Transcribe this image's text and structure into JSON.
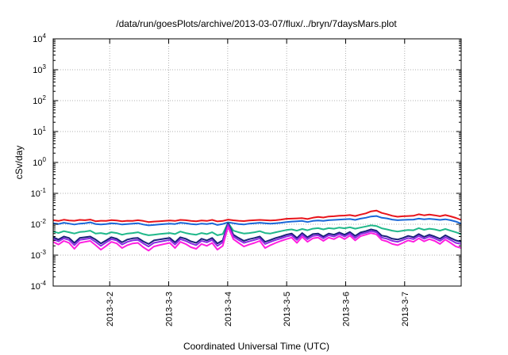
{
  "chart_data": {
    "type": "line",
    "title": "/data/run/goesPlots/archive/2013-03-07/flux/../bryn/7daysMars.plot",
    "xlabel": "Coordinated Universal Time (UTC)",
    "ylabel": "cSv/day",
    "yscale": "log",
    "ylim": [
      0.0001,
      10000
    ],
    "xlim": [
      "2013-03-01T01:00",
      "2013-03-07T23:00"
    ],
    "grid": true,
    "x_ticks": [
      "2013-3-2",
      "2013-3-3",
      "2013-3-4",
      "2013-3-5",
      "2013-3-6",
      "2013-3-7"
    ],
    "y_ticks": [
      {
        "value": 0.0001,
        "base": "10",
        "exp": "-4"
      },
      {
        "value": 0.001,
        "base": "10",
        "exp": "-3"
      },
      {
        "value": 0.01,
        "base": "10",
        "exp": "-2"
      },
      {
        "value": 0.1,
        "base": "10",
        "exp": "-1"
      },
      {
        "value": 1,
        "base": "10",
        "exp": "0"
      },
      {
        "value": 10,
        "base": "10",
        "exp": "1"
      },
      {
        "value": 100,
        "base": "10",
        "exp": "2"
      },
      {
        "value": 1000,
        "base": "10",
        "exp": "3"
      },
      {
        "value": 10000,
        "base": "10",
        "exp": "4"
      }
    ],
    "series": [
      {
        "color": "#e8141b",
        "values": [
          0.0135,
          0.0128,
          0.014,
          0.0133,
          0.013,
          0.0138,
          0.0135,
          0.0142,
          0.0125,
          0.013,
          0.0128,
          0.0136,
          0.0132,
          0.0125,
          0.013,
          0.0128,
          0.0135,
          0.0128,
          0.0118,
          0.0122,
          0.0125,
          0.0128,
          0.0132,
          0.0128,
          0.0138,
          0.0135,
          0.0128,
          0.0125,
          0.0132,
          0.0128,
          0.0138,
          0.0124,
          0.0128,
          0.0142,
          0.0134,
          0.013,
          0.0127,
          0.0132,
          0.0135,
          0.0138,
          0.0135,
          0.0132,
          0.0135,
          0.0142,
          0.015,
          0.0152,
          0.0155,
          0.0158,
          0.0148,
          0.0162,
          0.0172,
          0.0165,
          0.0178,
          0.0182,
          0.0188,
          0.0192,
          0.0198,
          0.0185,
          0.0205,
          0.0225,
          0.0262,
          0.0278,
          0.0232,
          0.0212,
          0.0188,
          0.0175,
          0.0182,
          0.0185,
          0.0188,
          0.021,
          0.0195,
          0.0205,
          0.0195,
          0.0182,
          0.0198,
          0.018,
          0.016,
          0.0138
        ]
      },
      {
        "color": "#1a67d8",
        "values": [
          0.0108,
          0.0102,
          0.0112,
          0.0105,
          0.0098,
          0.0105,
          0.0108,
          0.0115,
          0.0102,
          0.0098,
          0.0102,
          0.0108,
          0.0105,
          0.0098,
          0.0102,
          0.0105,
          0.0108,
          0.0098,
          0.0092,
          0.0095,
          0.0098,
          0.0102,
          0.0105,
          0.0102,
          0.0112,
          0.0108,
          0.0102,
          0.0098,
          0.0105,
          0.0102,
          0.0108,
          0.0095,
          0.0102,
          0.0115,
          0.0108,
          0.0102,
          0.0098,
          0.0105,
          0.0108,
          0.0112,
          0.0108,
          0.0105,
          0.0108,
          0.0112,
          0.0118,
          0.0122,
          0.0125,
          0.0128,
          0.0118,
          0.0128,
          0.0132,
          0.0128,
          0.0135,
          0.0138,
          0.0142,
          0.0145,
          0.0148,
          0.0138,
          0.0152,
          0.0162,
          0.0178,
          0.0185,
          0.0162,
          0.0155,
          0.0142,
          0.0135,
          0.0138,
          0.014,
          0.0142,
          0.0152,
          0.0145,
          0.015,
          0.0145,
          0.0138,
          0.0145,
          0.0135,
          0.0122,
          0.0105
        ]
      },
      {
        "color": "#20b88a",
        "values": [
          0.0058,
          0.0052,
          0.006,
          0.0055,
          0.005,
          0.0056,
          0.0058,
          0.0062,
          0.005,
          0.0052,
          0.0048,
          0.0055,
          0.0052,
          0.0046,
          0.005,
          0.0052,
          0.0055,
          0.0048,
          0.0044,
          0.0046,
          0.0048,
          0.005,
          0.0052,
          0.0048,
          0.0058,
          0.0052,
          0.0048,
          0.0046,
          0.0052,
          0.0048,
          0.0055,
          0.0044,
          0.0048,
          0.0112,
          0.0062,
          0.0055,
          0.005,
          0.0052,
          0.0055,
          0.006,
          0.0052,
          0.005,
          0.0055,
          0.006,
          0.0065,
          0.0068,
          0.0062,
          0.007,
          0.0064,
          0.0072,
          0.0075,
          0.0068,
          0.0075,
          0.0072,
          0.0078,
          0.0074,
          0.008,
          0.0072,
          0.0078,
          0.0085,
          0.0092,
          0.0088,
          0.0074,
          0.0068,
          0.0062,
          0.0058,
          0.0062,
          0.0065,
          0.0064,
          0.0075,
          0.0066,
          0.0072,
          0.0068,
          0.0062,
          0.007,
          0.0062,
          0.0055,
          0.0048
        ]
      },
      {
        "color": "#1a1f7a",
        "values": [
          0.0038,
          0.0032,
          0.004,
          0.0036,
          0.0025,
          0.0036,
          0.0038,
          0.004,
          0.0032,
          0.0024,
          0.003,
          0.0038,
          0.0034,
          0.0026,
          0.0032,
          0.0035,
          0.0036,
          0.0028,
          0.0023,
          0.003,
          0.0032,
          0.0034,
          0.0036,
          0.0026,
          0.0038,
          0.0034,
          0.0028,
          0.0025,
          0.0034,
          0.003,
          0.0036,
          0.0024,
          0.003,
          0.0108,
          0.0046,
          0.0036,
          0.0029,
          0.0033,
          0.0036,
          0.004,
          0.0027,
          0.0031,
          0.0036,
          0.004,
          0.0046,
          0.005,
          0.0036,
          0.0052,
          0.0038,
          0.0048,
          0.005,
          0.004,
          0.005,
          0.0046,
          0.0054,
          0.0046,
          0.0056,
          0.0042,
          0.0054,
          0.006,
          0.0068,
          0.0062,
          0.0043,
          0.004,
          0.0034,
          0.0032,
          0.0036,
          0.0042,
          0.0038,
          0.0048,
          0.0039,
          0.0046,
          0.004,
          0.0034,
          0.0044,
          0.0036,
          0.003,
          0.0027
        ]
      },
      {
        "color": "#8a2be2",
        "values": [
          0.0033,
          0.0028,
          0.0035,
          0.0031,
          0.0021,
          0.0031,
          0.0033,
          0.0035,
          0.0027,
          0.002,
          0.0026,
          0.0033,
          0.003,
          0.0022,
          0.0027,
          0.003,
          0.0031,
          0.0024,
          0.0019,
          0.0025,
          0.0027,
          0.0029,
          0.0031,
          0.0022,
          0.0033,
          0.0029,
          0.0024,
          0.0021,
          0.0029,
          0.0026,
          0.0031,
          0.002,
          0.0026,
          0.0098,
          0.004,
          0.0031,
          0.0025,
          0.0028,
          0.0031,
          0.0035,
          0.0023,
          0.0027,
          0.0031,
          0.0035,
          0.004,
          0.0044,
          0.0031,
          0.0046,
          0.0033,
          0.0042,
          0.0044,
          0.0035,
          0.0044,
          0.004,
          0.0048,
          0.004,
          0.005,
          0.0036,
          0.0048,
          0.0053,
          0.006,
          0.0055,
          0.0037,
          0.0034,
          0.0029,
          0.0027,
          0.0031,
          0.0036,
          0.0033,
          0.0042,
          0.0034,
          0.004,
          0.0035,
          0.0029,
          0.0038,
          0.0031,
          0.0025,
          0.0023
        ]
      },
      {
        "color": "#ff1fe0",
        "values": [
          0.0027,
          0.0022,
          0.0029,
          0.0025,
          0.0016,
          0.0025,
          0.0027,
          0.0029,
          0.0021,
          0.0015,
          0.002,
          0.0027,
          0.0024,
          0.0017,
          0.0021,
          0.0024,
          0.0025,
          0.0018,
          0.0014,
          0.0019,
          0.0021,
          0.0023,
          0.0025,
          0.0017,
          0.0027,
          0.0023,
          0.0018,
          0.0016,
          0.0023,
          0.002,
          0.0025,
          0.0015,
          0.002,
          0.0082,
          0.0033,
          0.0025,
          0.0019,
          0.0022,
          0.0025,
          0.0029,
          0.0017,
          0.0021,
          0.0025,
          0.0029,
          0.0033,
          0.0037,
          0.0025,
          0.0039,
          0.0027,
          0.0035,
          0.0037,
          0.0029,
          0.0037,
          0.0033,
          0.0041,
          0.0033,
          0.0043,
          0.003,
          0.0041,
          0.0046,
          0.0052,
          0.0047,
          0.0031,
          0.0028,
          0.0023,
          0.0021,
          0.0025,
          0.003,
          0.0027,
          0.0035,
          0.0028,
          0.0033,
          0.0029,
          0.0023,
          0.0032,
          0.0025,
          0.0019,
          0.0017
        ]
      }
    ]
  }
}
